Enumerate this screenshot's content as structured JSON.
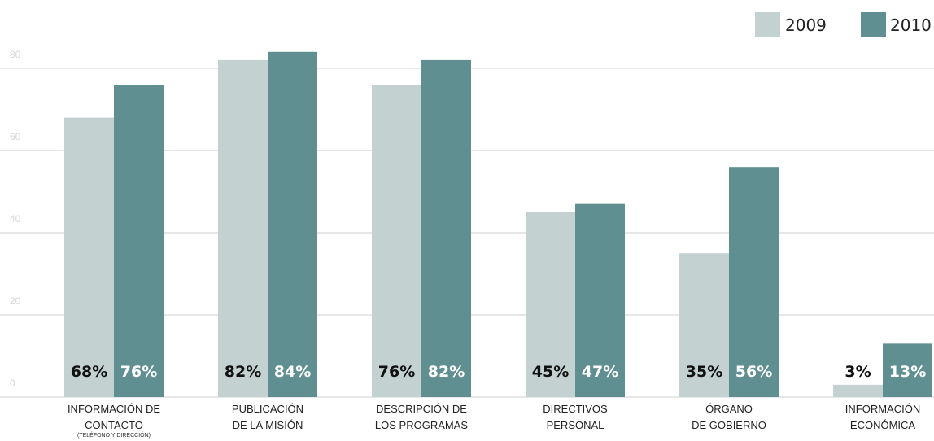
{
  "chart_data": {
    "type": "bar",
    "categories": [
      {
        "lines": [
          "INFORMACIÓN DE",
          "CONTACTO"
        ],
        "note": "(TELÉFONO Y DIRECCIÓN)"
      },
      {
        "lines": [
          "PUBLICACIÓN",
          "DE LA MISIÓN"
        ]
      },
      {
        "lines": [
          "DESCRIPCIÓN DE",
          "LOS PROGRAMAS"
        ]
      },
      {
        "lines": [
          "DIRECTIVOS",
          "PERSONAL"
        ]
      },
      {
        "lines": [
          "ÓRGANO",
          "DE GOBIERNO"
        ]
      },
      {
        "lines": [
          "INFORMACIÓN",
          "ECONÓMICA"
        ]
      }
    ],
    "series": [
      {
        "name": "2009",
        "color": "#c3d1d1",
        "label_color": "#111111",
        "values": [
          68,
          82,
          76,
          45,
          35,
          3
        ],
        "labels": [
          "68%",
          "82%",
          "76%",
          "45%",
          "35%",
          "3%"
        ]
      },
      {
        "name": "2010",
        "color": "#5f8f91",
        "label_color": "#ffffff",
        "values": [
          76,
          84,
          82,
          47,
          56,
          13
        ],
        "labels": [
          "76%",
          "84%",
          "82%",
          "47%",
          "56%",
          "13%"
        ]
      }
    ],
    "y_ticks": [
      "0",
      "20",
      "40",
      "60",
      "80"
    ],
    "ylim": [
      0,
      85
    ],
    "grid": true,
    "legend_position": "top-right",
    "gridline_color": "#cfcfcf",
    "tick_color": "#d6d6d6"
  }
}
